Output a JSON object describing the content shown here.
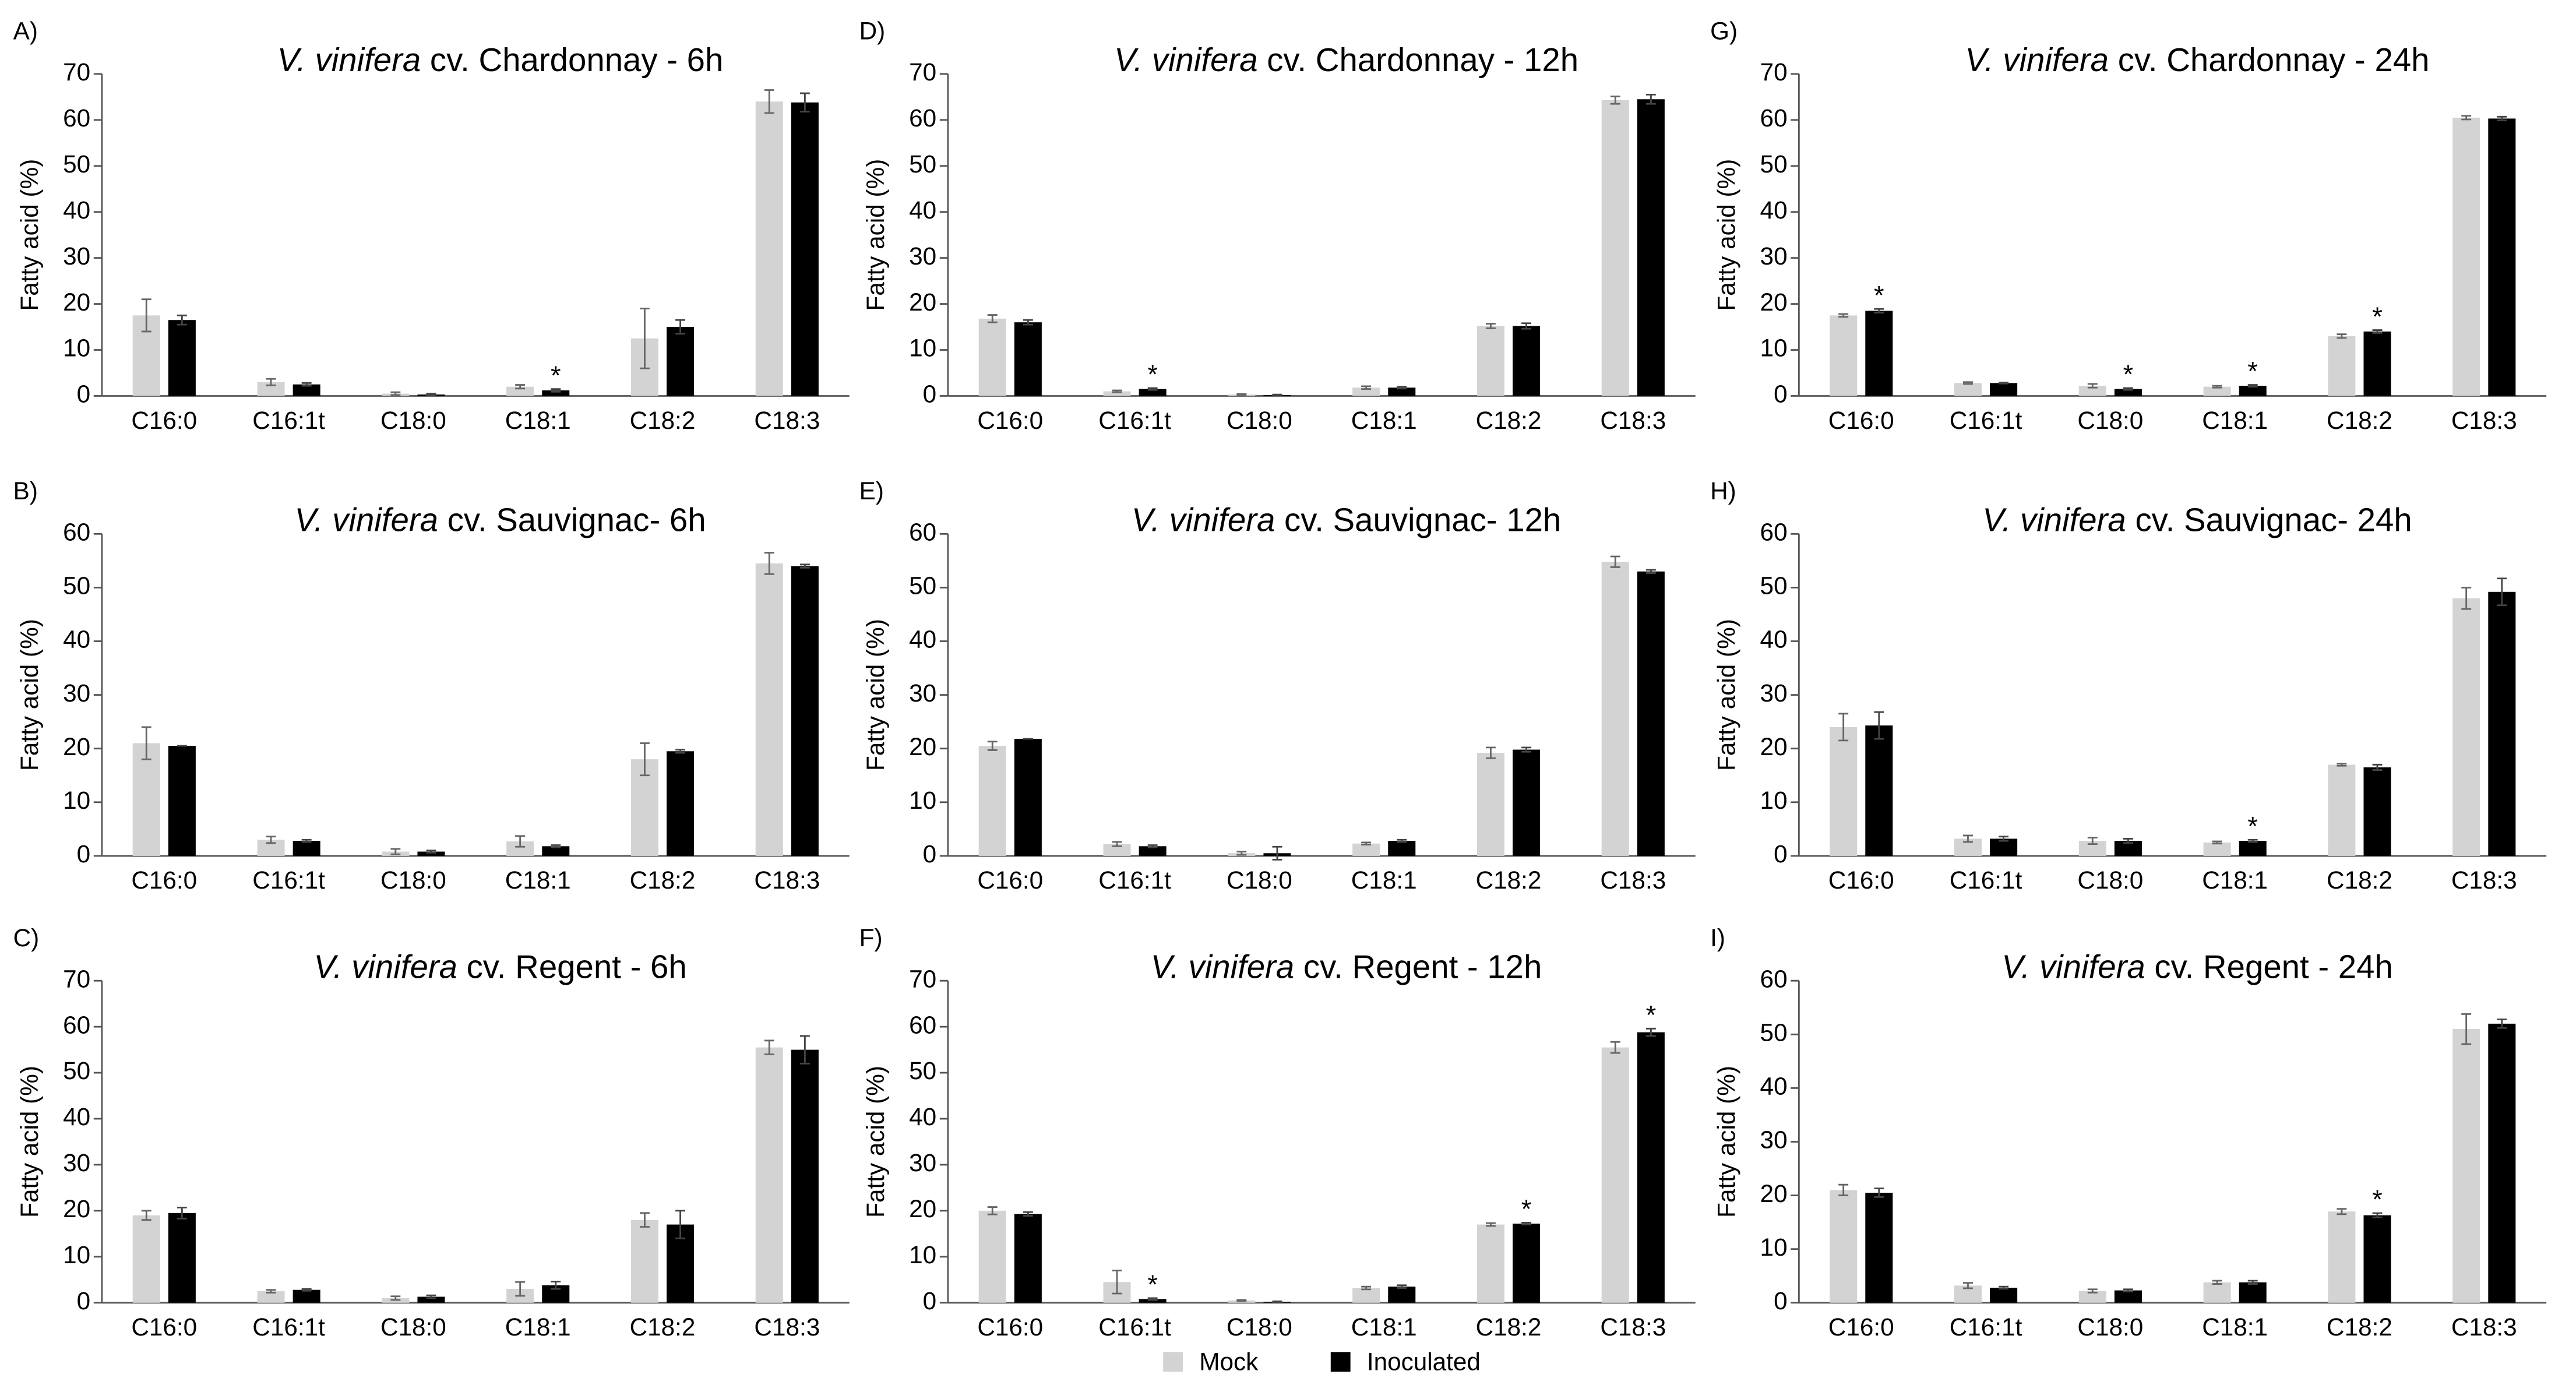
{
  "chart_data": [
    {
      "type": "bar",
      "panel": "A)",
      "species": "V. vinifera",
      "title": "cv. Chardonnay - 6h",
      "ylabel": "Fatty acid (%)",
      "categories": [
        "C16:0",
        "C16:1t",
        "C18:0",
        "C18:1",
        "C18:2",
        "C18:3"
      ],
      "ylim": [
        0,
        70
      ],
      "yticks": [
        0,
        10,
        20,
        30,
        40,
        50,
        60,
        70
      ],
      "series": [
        {
          "name": "Mock",
          "color": "#d3d3d3",
          "values": [
            17.5,
            3,
            0.5,
            2,
            12.5,
            64
          ],
          "errors": [
            3.5,
            0.7,
            0.3,
            0.4,
            6.5,
            2.5
          ],
          "marks": [
            null,
            null,
            null,
            null,
            null,
            null
          ]
        },
        {
          "name": "Inoculated",
          "color": "#000000",
          "values": [
            16.5,
            2.5,
            0.3,
            1.2,
            15,
            63.8
          ],
          "errors": [
            1,
            0.3,
            0.2,
            0.3,
            1.5,
            2
          ],
          "marks": [
            null,
            null,
            null,
            "*",
            null,
            null
          ]
        }
      ]
    },
    {
      "type": "bar",
      "panel": "B)",
      "species": "V. vinifera",
      "title": "cv. Sauvignac- 6h",
      "ylabel": "Fatty acid (%)",
      "categories": [
        "C16:0",
        "C16:1t",
        "C18:0",
        "C18:1",
        "C18:2",
        "C18:3"
      ],
      "ylim": [
        0,
        60
      ],
      "yticks": [
        0,
        10,
        20,
        30,
        40,
        50,
        60
      ],
      "series": [
        {
          "name": "Mock",
          "color": "#d3d3d3",
          "values": [
            21,
            3,
            0.8,
            2.7,
            18,
            54.5
          ],
          "errors": [
            3,
            0.6,
            0.5,
            1,
            3,
            2
          ],
          "marks": [
            null,
            null,
            null,
            null,
            null,
            null
          ]
        },
        {
          "name": "Inoculated",
          "color": "#000000",
          "values": [
            20.5,
            2.8,
            0.8,
            1.8,
            19.5,
            54
          ],
          "errors": [
            0,
            0.2,
            0.2,
            0.2,
            0.3,
            0.3
          ],
          "marks": [
            null,
            null,
            null,
            null,
            null,
            null
          ]
        }
      ]
    },
    {
      "type": "bar",
      "panel": "C)",
      "species": "V. vinifera",
      "title": "cv. Regent - 6h",
      "ylabel": "Fatty acid (%)",
      "categories": [
        "C16:0",
        "C16:1t",
        "C18:0",
        "C18:1",
        "C18:2",
        "C18:3"
      ],
      "ylim": [
        0,
        70
      ],
      "yticks": [
        0,
        10,
        20,
        30,
        40,
        50,
        60,
        70
      ],
      "series": [
        {
          "name": "Mock",
          "color": "#d3d3d3",
          "values": [
            19,
            2.5,
            1,
            3,
            18,
            55.5
          ],
          "errors": [
            1,
            0.3,
            0.4,
            1.5,
            1.5,
            1.5
          ],
          "marks": [
            null,
            null,
            null,
            null,
            null,
            null
          ]
        },
        {
          "name": "Inoculated",
          "color": "#000000",
          "values": [
            19.5,
            2.8,
            1.3,
            3.8,
            17,
            55
          ],
          "errors": [
            1.2,
            0.2,
            0.3,
            0.8,
            3,
            3
          ],
          "marks": [
            null,
            null,
            null,
            null,
            null,
            null
          ]
        }
      ]
    },
    {
      "type": "bar",
      "panel": "D)",
      "species": "V. vinifera",
      "title": "cv. Chardonnay - 12h",
      "ylabel": "Fatty acid (%)",
      "categories": [
        "C16:0",
        "C16:1t",
        "C18:0",
        "C18:1",
        "C18:2",
        "C18:3"
      ],
      "ylim": [
        0,
        70
      ],
      "yticks": [
        0,
        10,
        20,
        30,
        40,
        50,
        60,
        70
      ],
      "series": [
        {
          "name": "Mock",
          "color": "#d3d3d3",
          "values": [
            16.8,
            1,
            0.3,
            1.8,
            15.2,
            64.3
          ],
          "errors": [
            0.8,
            0.2,
            0.1,
            0.3,
            0.5,
            0.8
          ],
          "marks": [
            null,
            null,
            null,
            null,
            null,
            null
          ]
        },
        {
          "name": "Inoculated",
          "color": "#000000",
          "values": [
            16,
            1.5,
            0.2,
            1.8,
            15.2,
            64.5
          ],
          "errors": [
            0.5,
            0.2,
            0.1,
            0.2,
            0.6,
            1
          ],
          "marks": [
            null,
            "*",
            null,
            null,
            null,
            null
          ]
        }
      ]
    },
    {
      "type": "bar",
      "panel": "E)",
      "species": "V. vinifera",
      "title": "cv. Sauvignac- 12h",
      "ylabel": "Fatty acid (%)",
      "categories": [
        "C16:0",
        "C16:1t",
        "C18:0",
        "C18:1",
        "C18:2",
        "C18:3"
      ],
      "ylim": [
        0,
        60
      ],
      "yticks": [
        0,
        10,
        20,
        30,
        40,
        50,
        60
      ],
      "series": [
        {
          "name": "Mock",
          "color": "#d3d3d3",
          "values": [
            20.5,
            2.2,
            0.5,
            2.3,
            19.2,
            54.8
          ],
          "errors": [
            0.8,
            0.4,
            0.3,
            0.2,
            1,
            1
          ],
          "marks": [
            null,
            null,
            null,
            null,
            null,
            null
          ]
        },
        {
          "name": "Inoculated",
          "color": "#000000",
          "values": [
            21.8,
            1.8,
            0.5,
            2.8,
            19.8,
            53
          ],
          "errors": [
            0,
            0.2,
            1.2,
            0.2,
            0.4,
            0.3
          ],
          "marks": [
            null,
            null,
            null,
            null,
            null,
            null
          ]
        }
      ]
    },
    {
      "type": "bar",
      "panel": "F)",
      "species": "V. vinifera",
      "title": "cv. Regent - 12h",
      "ylabel": "Fatty acid (%)",
      "categories": [
        "C16:0",
        "C16:1t",
        "C18:0",
        "C18:1",
        "C18:2",
        "C18:3"
      ],
      "ylim": [
        0,
        70
      ],
      "yticks": [
        0,
        10,
        20,
        30,
        40,
        50,
        60,
        70
      ],
      "series": [
        {
          "name": "Mock",
          "color": "#d3d3d3",
          "values": [
            20,
            4.5,
            0.5,
            3.2,
            17,
            55.5
          ],
          "errors": [
            0.8,
            2.5,
            0.1,
            0.3,
            0.3,
            1.2
          ],
          "marks": [
            null,
            null,
            null,
            null,
            null,
            null
          ]
        },
        {
          "name": "Inoculated",
          "color": "#000000",
          "values": [
            19.3,
            0.8,
            0.2,
            3.5,
            17.2,
            58.8
          ],
          "errors": [
            0.4,
            0.2,
            0.1,
            0.3,
            0.2,
            0.8
          ],
          "marks": [
            null,
            "*",
            null,
            null,
            "*",
            "*"
          ]
        }
      ]
    },
    {
      "type": "bar",
      "panel": "G)",
      "species": "V. vinifera",
      "title": "cv. Chardonnay - 24h",
      "ylabel": "Fatty acid (%)",
      "categories": [
        "C16:0",
        "C16:1t",
        "C18:0",
        "C18:1",
        "C18:2",
        "C18:3"
      ],
      "ylim": [
        0,
        70
      ],
      "yticks": [
        0,
        10,
        20,
        30,
        40,
        50,
        60,
        70
      ],
      "series": [
        {
          "name": "Mock",
          "color": "#d3d3d3",
          "values": [
            17.5,
            2.8,
            2.2,
            2,
            13,
            60.5
          ],
          "errors": [
            0.3,
            0.2,
            0.4,
            0.2,
            0.4,
            0.4
          ],
          "marks": [
            null,
            null,
            null,
            null,
            null,
            null
          ]
        },
        {
          "name": "Inoculated",
          "color": "#000000",
          "values": [
            18.5,
            2.8,
            1.5,
            2.2,
            14,
            60.3
          ],
          "errors": [
            0.4,
            0.1,
            0.2,
            0.2,
            0.3,
            0.4
          ],
          "marks": [
            "*",
            null,
            "*",
            "*",
            "*",
            null
          ]
        }
      ]
    },
    {
      "type": "bar",
      "panel": "H)",
      "species": "V. vinifera",
      "title": "cv. Sauvignac- 24h",
      "ylabel": "Fatty acid (%)",
      "categories": [
        "C16:0",
        "C16:1t",
        "C18:0",
        "C18:1",
        "C18:2",
        "C18:3"
      ],
      "ylim": [
        0,
        60
      ],
      "yticks": [
        0,
        10,
        20,
        30,
        40,
        50,
        60
      ],
      "series": [
        {
          "name": "Mock",
          "color": "#d3d3d3",
          "values": [
            24,
            3.2,
            2.8,
            2.5,
            17,
            48
          ],
          "errors": [
            2.5,
            0.6,
            0.6,
            0.2,
            0.2,
            2
          ],
          "marks": [
            null,
            null,
            null,
            null,
            null,
            null
          ]
        },
        {
          "name": "Inoculated",
          "color": "#000000",
          "values": [
            24.3,
            3.2,
            2.8,
            2.8,
            16.5,
            49.2
          ],
          "errors": [
            2.5,
            0.4,
            0.4,
            0.2,
            0.5,
            2.5
          ],
          "marks": [
            null,
            null,
            null,
            "*",
            null,
            null
          ]
        }
      ]
    },
    {
      "type": "bar",
      "panel": "I)",
      "species": "V. vinifera",
      "title": "cv. Regent - 24h",
      "ylabel": "Fatty acid (%)",
      "categories": [
        "C16:0",
        "C16:1t",
        "C18:0",
        "C18:1",
        "C18:2",
        "C18:3"
      ],
      "ylim": [
        0,
        60
      ],
      "yticks": [
        0,
        10,
        20,
        30,
        40,
        50,
        60
      ],
      "series": [
        {
          "name": "Mock",
          "color": "#d3d3d3",
          "values": [
            21,
            3.2,
            2.2,
            3.8,
            17,
            51
          ],
          "errors": [
            1,
            0.5,
            0.3,
            0.3,
            0.5,
            2.8
          ],
          "marks": [
            null,
            null,
            null,
            null,
            null,
            null
          ]
        },
        {
          "name": "Inoculated",
          "color": "#000000",
          "values": [
            20.5,
            2.8,
            2.3,
            3.8,
            16.3,
            52
          ],
          "errors": [
            0.8,
            0.2,
            0.2,
            0.3,
            0.4,
            0.8
          ],
          "marks": [
            null,
            null,
            null,
            null,
            "*",
            null
          ]
        }
      ]
    }
  ]
}
